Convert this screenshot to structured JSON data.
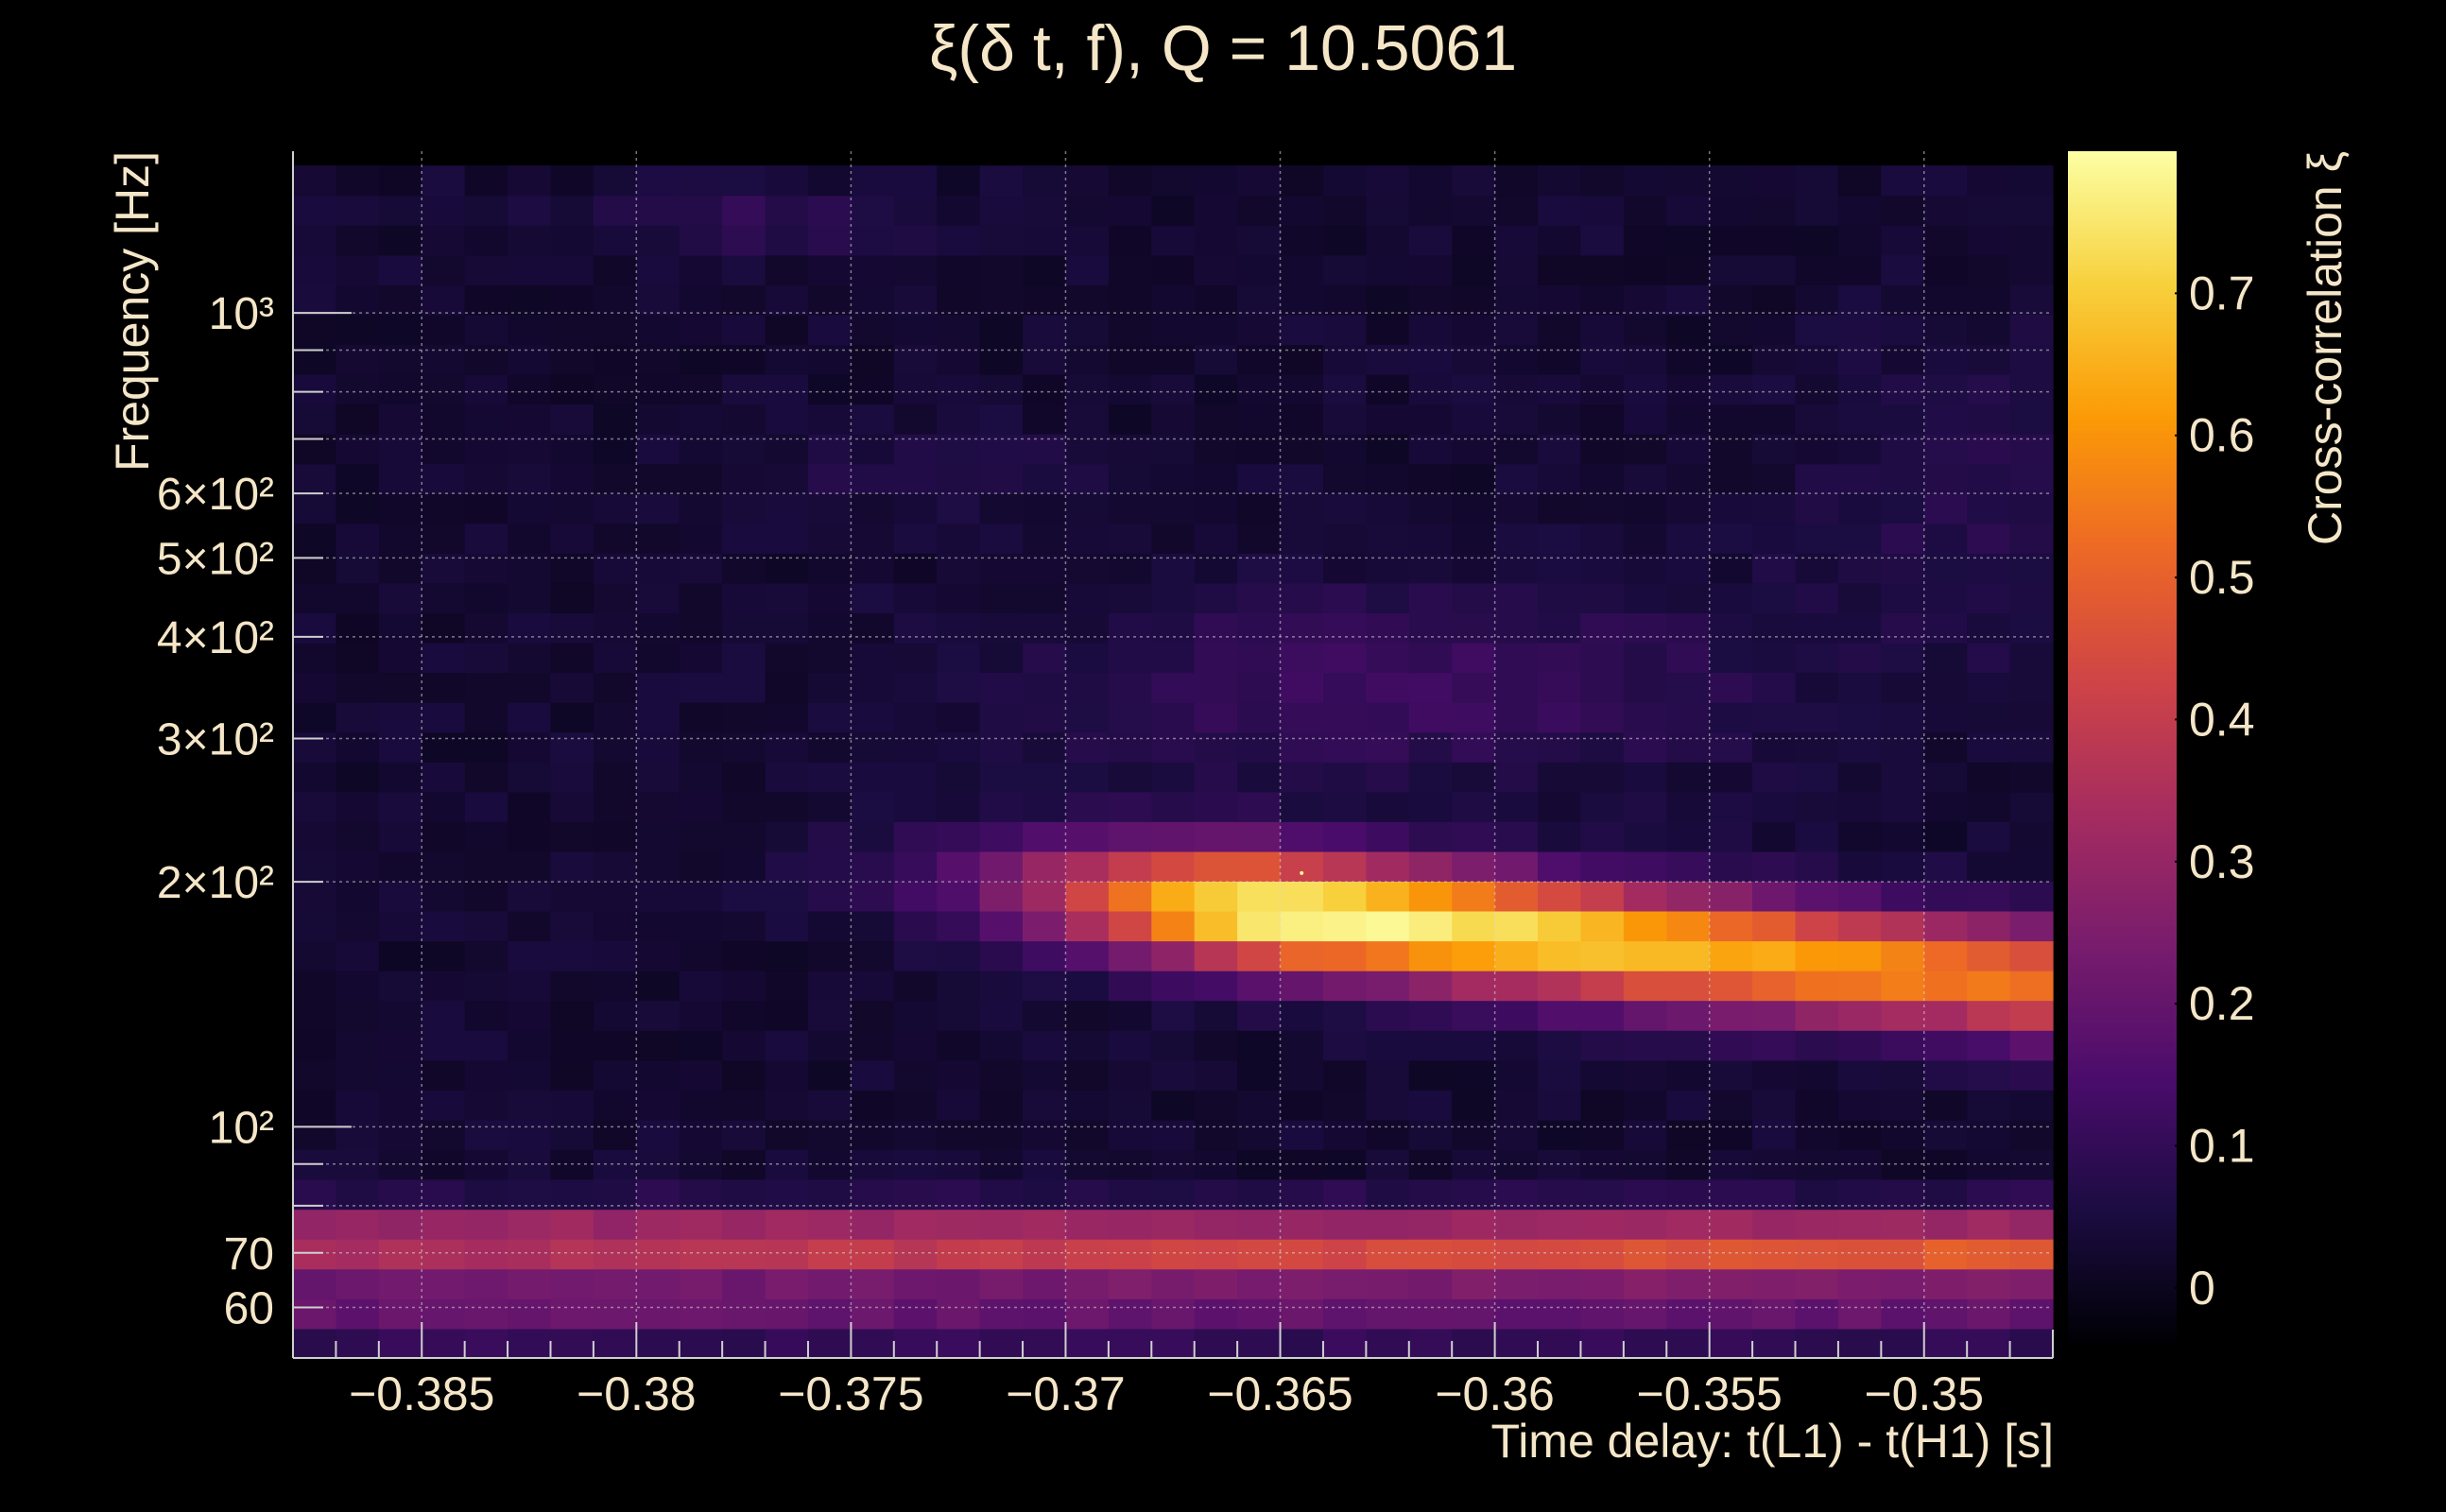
{
  "chart_data": {
    "type": "heatmap",
    "title": "ξ(δ t, f), Q = 10.5061",
    "xlabel": "Time delay: t(L1) - t(H1) [s]",
    "ylabel": "Frequency [Hz]",
    "colorbar_label": "Cross-correlation ξ",
    "x_range": [
      -0.388,
      -0.347
    ],
    "y_range": [
      52,
      1580
    ],
    "y_scale": "log",
    "grid": true,
    "colorbar_range": [
      -0.04,
      0.8
    ],
    "x_ticks": [
      {
        "value": -0.385,
        "label": "−0.385"
      },
      {
        "value": -0.38,
        "label": "−0.38"
      },
      {
        "value": -0.375,
        "label": "−0.375"
      },
      {
        "value": -0.37,
        "label": "−0.37"
      },
      {
        "value": -0.365,
        "label": "−0.365"
      },
      {
        "value": -0.36,
        "label": "−0.36"
      },
      {
        "value": -0.355,
        "label": "−0.355"
      },
      {
        "value": -0.35,
        "label": "−0.35"
      }
    ],
    "y_ticks": [
      {
        "value": 60,
        "label": "60"
      },
      {
        "value": 70,
        "label": "70"
      },
      {
        "value": 100,
        "label": "10²"
      },
      {
        "value": 200,
        "label": "2×10²"
      },
      {
        "value": 300,
        "label": "3×10²"
      },
      {
        "value": 400,
        "label": "4×10²"
      },
      {
        "value": 500,
        "label": "5×10²"
      },
      {
        "value": 600,
        "label": "6×10²"
      },
      {
        "value": 1000,
        "label": "10³"
      }
    ],
    "colorbar_ticks": [
      {
        "value": 0,
        "label": "0"
      },
      {
        "value": 0.1,
        "label": "0.1"
      },
      {
        "value": 0.2,
        "label": "0.2"
      },
      {
        "value": 0.3,
        "label": "0.3"
      },
      {
        "value": 0.4,
        "label": "0.4"
      },
      {
        "value": 0.5,
        "label": "0.5"
      },
      {
        "value": 0.6,
        "label": "0.6"
      },
      {
        "value": 0.7,
        "label": "0.7"
      }
    ],
    "colormap": [
      "#000004",
      "#1b0c41",
      "#4a0c6b",
      "#781c6d",
      "#a52c60",
      "#cf4446",
      "#ed6925",
      "#fb9b06",
      "#f7d13d",
      "#fcffa4"
    ],
    "time_bins": [
      -0.388,
      -0.387,
      -0.386,
      -0.385,
      -0.384,
      -0.383,
      -0.382,
      -0.381,
      -0.38,
      -0.379,
      -0.378,
      -0.377,
      -0.376,
      -0.375,
      -0.374,
      -0.373,
      -0.372,
      -0.371,
      -0.37,
      -0.369,
      -0.368,
      -0.367,
      -0.366,
      -0.365,
      -0.364,
      -0.363,
      -0.362,
      -0.361,
      -0.36,
      -0.359,
      -0.358,
      -0.357,
      -0.356,
      -0.355,
      -0.354,
      -0.353,
      -0.352,
      -0.351,
      -0.35,
      -0.349,
      -0.348,
      -0.347
    ],
    "freq_bins": [
      52,
      56.5,
      61.5,
      66.9,
      72.8,
      79.2,
      86.2,
      93.8,
      102,
      111,
      120.8,
      131.4,
      143,
      155.6,
      169.3,
      184.2,
      200.4,
      218,
      237.2,
      258.1,
      280.8,
      305.5,
      332.4,
      361.7,
      393.5,
      428.2,
      465.9,
      506.9,
      551.5,
      600,
      652.8,
      710.3,
      772.8,
      840.8,
      914.8,
      995.3,
      1082.9,
      1178.2,
      1281.9,
      1394.7,
      1517.5
    ],
    "features": [
      {
        "kind": "peak",
        "time": -0.3645,
        "freq": 205,
        "value": 0.79
      },
      {
        "kind": "ridge",
        "time_from": -0.375,
        "time_to": -0.347,
        "freq_from": 205,
        "freq_to": 150,
        "value": 0.5
      },
      {
        "kind": "band",
        "freq": 68,
        "value": 0.46
      },
      {
        "kind": "band",
        "freq": 76,
        "value": 0.3
      },
      {
        "kind": "band",
        "freq": 60,
        "value": 0.2
      }
    ]
  }
}
